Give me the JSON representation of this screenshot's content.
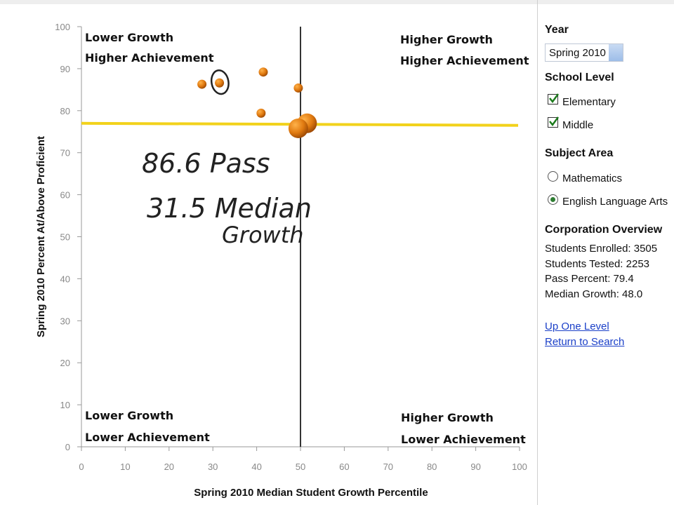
{
  "chart_data": {
    "type": "scatter",
    "xlabel": "Spring 2010 Median Student Growth Percentile",
    "ylabel": "Spring 2010 Percent At/Above Proficient",
    "xlim": [
      0,
      100
    ],
    "ylim": [
      0,
      100
    ],
    "x_ticks": [
      "0",
      "10",
      "20",
      "30",
      "40",
      "50",
      "60",
      "70",
      "80",
      "90",
      "100"
    ],
    "y_ticks": [
      "0",
      "10",
      "20",
      "30",
      "40",
      "50",
      "60",
      "70",
      "80",
      "90",
      "100"
    ],
    "vertical_reference": 50,
    "horizontal_reference": 77,
    "reference_line_color": "#f2d21b",
    "point_color": "#e07a10",
    "grid": false,
    "quadrants": {
      "top_left": [
        "Lower Growth",
        "Higher Achievement"
      ],
      "top_right": [
        "Higher Growth",
        "Higher Achievement"
      ],
      "bottom_left": [
        "Lower Growth",
        "Lower Achievement"
      ],
      "bottom_right": [
        "Higher Growth",
        "Lower Achievement"
      ]
    },
    "points": [
      {
        "x": 27.5,
        "y": 86.3,
        "size": "small"
      },
      {
        "x": 31.5,
        "y": 86.6,
        "size": "small",
        "highlighted": true
      },
      {
        "x": 41.5,
        "y": 89.2,
        "size": "small"
      },
      {
        "x": 41.0,
        "y": 79.4,
        "size": "small"
      },
      {
        "x": 49.5,
        "y": 85.4,
        "size": "small"
      },
      {
        "x": 51.5,
        "y": 77.0,
        "size": "large"
      },
      {
        "x": 49.5,
        "y": 75.8,
        "size": "large"
      }
    ],
    "handwritten_annotation": [
      "86.6 Pass",
      "31.5 Median",
      "Growth"
    ]
  },
  "sidebar": {
    "year_heading": "Year",
    "year_value": "Spring 2010",
    "school_level_heading": "School Level",
    "school_levels": [
      {
        "label": "Elementary",
        "checked": true
      },
      {
        "label": "Middle",
        "checked": true
      }
    ],
    "subject_heading": "Subject Area",
    "subjects": [
      {
        "label": "Mathematics",
        "selected": false
      },
      {
        "label": "English Language Arts",
        "selected": true
      }
    ],
    "overview_heading": "Corporation Overview",
    "overview_lines": [
      "Students Enrolled: 3505",
      "Students Tested: 2253",
      "Pass Percent: 79.4",
      "Median Growth: 48.0"
    ],
    "links": [
      "Up One Level",
      "Return to Search"
    ]
  }
}
